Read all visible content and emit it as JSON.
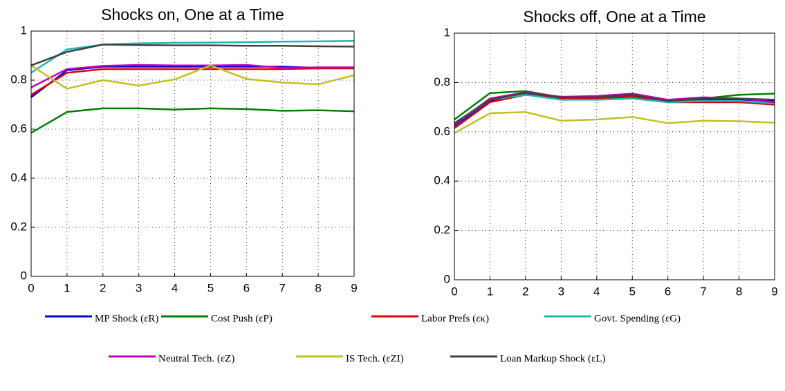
{
  "chart_data": [
    {
      "type": "line",
      "title": "Shocks on, One at a Time",
      "x": [
        0,
        1,
        2,
        3,
        4,
        5,
        6,
        7,
        8,
        9
      ],
      "xlim": [
        0,
        9
      ],
      "xticks": [
        0,
        1,
        2,
        3,
        4,
        5,
        6,
        7,
        8,
        9
      ],
      "ylim": [
        0,
        1
      ],
      "yticks": [
        0,
        0.2,
        0.4,
        0.6,
        0.8,
        1
      ],
      "grid": true,
      "series": [
        {
          "name": "MP Shock (εR)",
          "color": "#0000e0",
          "values": [
            0.73,
            0.84,
            0.855,
            0.855,
            0.855,
            0.855,
            0.855,
            0.855,
            0.85,
            0.85
          ]
        },
        {
          "name": "Cost Push (εP)",
          "color": "#007f00",
          "values": [
            0.585,
            0.67,
            0.685,
            0.685,
            0.68,
            0.685,
            0.682,
            0.675,
            0.677,
            0.673
          ]
        },
        {
          "name": "Labor Prefs (εκ)",
          "color": "#e00000",
          "values": [
            0.74,
            0.83,
            0.845,
            0.845,
            0.845,
            0.845,
            0.845,
            0.845,
            0.848,
            0.848
          ]
        },
        {
          "name": "Govt. Spending (εG)",
          "color": "#20b5b5",
          "values": [
            0.83,
            0.925,
            0.945,
            0.95,
            0.952,
            0.953,
            0.955,
            0.957,
            0.958,
            0.96
          ]
        },
        {
          "name": "Neutral Tech. (εZ)",
          "color": "#c000c0",
          "values": [
            0.77,
            0.845,
            0.858,
            0.862,
            0.86,
            0.86,
            0.862,
            0.85,
            0.852,
            0.852
          ]
        },
        {
          "name": "IS Tech. (εZI)",
          "color": "#c0c020",
          "values": [
            0.86,
            0.765,
            0.8,
            0.778,
            0.803,
            0.86,
            0.805,
            0.79,
            0.783,
            0.82
          ]
        },
        {
          "name": "Loan Markup Shock (εL)",
          "color": "#404040",
          "values": [
            0.86,
            0.915,
            0.945,
            0.943,
            0.942,
            0.942,
            0.94,
            0.94,
            0.938,
            0.937
          ]
        }
      ]
    },
    {
      "type": "line",
      "title": "Shocks off, One at a Time",
      "x": [
        0,
        1,
        2,
        3,
        4,
        5,
        6,
        7,
        8,
        9
      ],
      "xlim": [
        0,
        9
      ],
      "xticks": [
        0,
        1,
        2,
        3,
        4,
        5,
        6,
        7,
        8,
        9
      ],
      "ylim": [
        0,
        1
      ],
      "yticks": [
        0,
        0.2,
        0.4,
        0.6,
        0.8,
        1
      ],
      "grid": true,
      "series": [
        {
          "name": "MP Shock (εR)",
          "color": "#0000e0",
          "values": [
            0.625,
            0.725,
            0.755,
            0.74,
            0.74,
            0.75,
            0.725,
            0.73,
            0.73,
            0.725
          ]
        },
        {
          "name": "Cost Push (εP)",
          "color": "#007f00",
          "values": [
            0.65,
            0.757,
            0.765,
            0.74,
            0.73,
            0.74,
            0.72,
            0.735,
            0.75,
            0.755
          ]
        },
        {
          "name": "Labor Prefs (εκ)",
          "color": "#e00000",
          "values": [
            0.615,
            0.72,
            0.75,
            0.735,
            0.735,
            0.745,
            0.72,
            0.72,
            0.72,
            0.71
          ]
        },
        {
          "name": "Govt. Spending (εG)",
          "color": "#20b5b5",
          "values": [
            0.63,
            0.73,
            0.75,
            0.73,
            0.73,
            0.735,
            0.72,
            0.725,
            0.725,
            0.715
          ]
        },
        {
          "name": "Neutral Tech. (εZ)",
          "color": "#c000c0",
          "values": [
            0.63,
            0.735,
            0.76,
            0.742,
            0.745,
            0.755,
            0.73,
            0.74,
            0.735,
            0.72
          ]
        },
        {
          "name": "IS Tech. (εZI)",
          "color": "#c0c020",
          "values": [
            0.595,
            0.675,
            0.68,
            0.645,
            0.65,
            0.66,
            0.635,
            0.645,
            0.643,
            0.637
          ]
        },
        {
          "name": "Loan Markup Shock (εL)",
          "color": "#404040",
          "values": [
            0.635,
            0.73,
            0.758,
            0.74,
            0.74,
            0.75,
            0.725,
            0.735,
            0.735,
            0.73
          ]
        }
      ]
    }
  ]
}
